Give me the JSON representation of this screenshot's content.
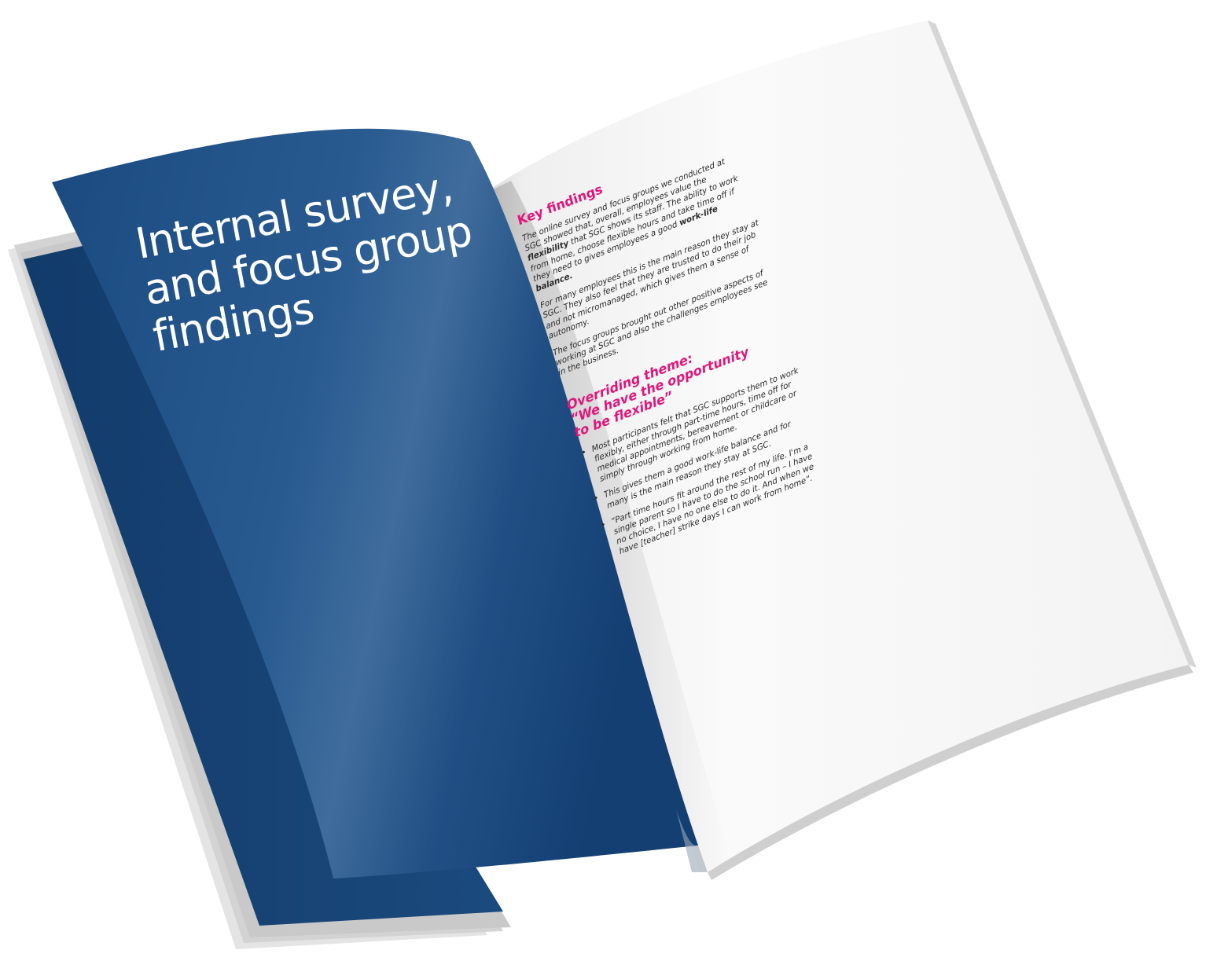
{
  "left_page": {
    "title_lines": [
      "Internal survey,",
      "and focus group",
      "findings"
    ],
    "background_color": "#1a4a80"
  },
  "right_page": {
    "key_findings": {
      "heading": "Key findings",
      "paragraphs": [
        {
          "before_1": "The online survey and focus groups we conducted at SGC showed that, overall, employees value the ",
          "bold_1": "flexibility",
          "between": " that SGC shows its staff. The ability to work from home, choose flexible hours and take time off if they need to gives employees a good ",
          "bold_2": "work-life balance."
        },
        "For many employees this is the main reason they stay at SGC. They also feel that they are trusted to do their job and not micromanaged, which gives them a sense of autonomy.",
        "The focus groups brought out other positive aspects of working at SGC and also the challenges employees see in the business."
      ]
    },
    "overriding_theme": {
      "heading_lines": [
        "Overriding theme:",
        "“We have the opportunity",
        "to be flexible”"
      ],
      "bullets": [
        "Most participants felt that SGC supports them to work flexibly, either through part-time hours, time off for medical appointments, bereavement or childcare or simply through working from home.",
        "This gives them a good work-life balance and for many is the main reason they stay at SGC.",
        "“Part time hours fit around the rest of my life. I'm a single parent so I have to do the school run – I have no choice, I have no one else to do it. And when we have [teacher] strike days I can work from home”."
      ]
    },
    "accent_color": "#e0167b"
  }
}
